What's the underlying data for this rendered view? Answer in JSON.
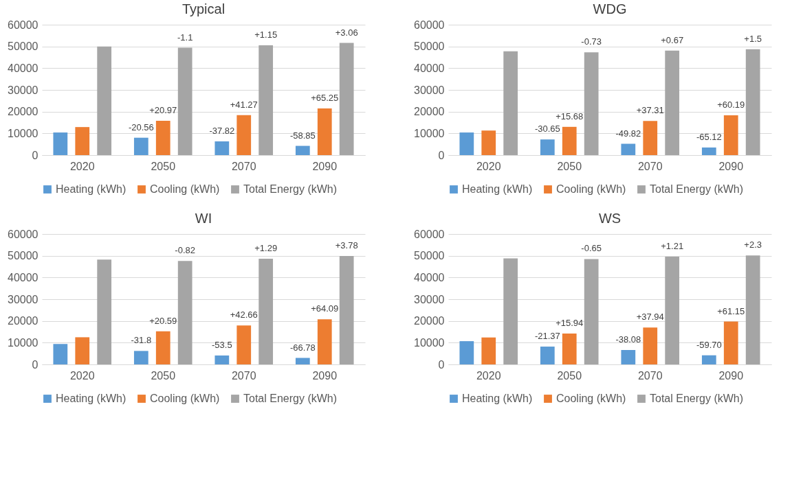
{
  "chart_data": [
    {
      "type": "bar",
      "title": "Typical",
      "categories": [
        "2020",
        "2050",
        "2070",
        "2090"
      ],
      "ylim": [
        0,
        60000
      ],
      "yticks": [
        0,
        10000,
        20000,
        30000,
        40000,
        50000,
        60000
      ],
      "grid": "y",
      "legend": "bottom",
      "series": [
        {
          "name": "Heating (kWh)",
          "color": "#5b9bd5",
          "values": [
            10400,
            8000,
            6300,
            4250
          ]
        },
        {
          "name": "Cooling (kWh)",
          "color": "#ed7d31",
          "values": [
            12900,
            15800,
            18400,
            21500
          ]
        },
        {
          "name": "Total Energy (kWh)",
          "color": "#a5a5a5",
          "values": [
            50000,
            49400,
            50500,
            51600
          ]
        }
      ],
      "annotations": [
        "-20.56",
        "+20.97",
        "-1.1",
        "-37.82",
        "+41.27",
        "+1.15",
        "-58.85",
        "+65.25",
        "+3.06"
      ]
    },
    {
      "type": "bar",
      "title": "WDG",
      "categories": [
        "2020",
        "2050",
        "2070",
        "2090"
      ],
      "ylim": [
        0,
        60000
      ],
      "yticks": [
        0,
        10000,
        20000,
        30000,
        40000,
        50000,
        60000
      ],
      "grid": "y",
      "legend": "bottom",
      "series": [
        {
          "name": "Heating (kWh)",
          "color": "#5b9bd5",
          "values": [
            10400,
            7200,
            5200,
            3500
          ]
        },
        {
          "name": "Cooling (kWh)",
          "color": "#ed7d31",
          "values": [
            11300,
            13000,
            15700,
            18300
          ]
        },
        {
          "name": "Total Energy (kWh)",
          "color": "#a5a5a5",
          "values": [
            47800,
            47300,
            48100,
            48700
          ]
        }
      ],
      "annotations": [
        "-30.65",
        "+15.68",
        "-0.73",
        "-49.82",
        "+37.31",
        "+0.67",
        "-65.12",
        "+60.19",
        "+1.5"
      ]
    },
    {
      "type": "bar",
      "title": "WI",
      "categories": [
        "2020",
        "2050",
        "2070",
        "2090"
      ],
      "ylim": [
        0,
        60000
      ],
      "yticks": [
        0,
        10000,
        20000,
        30000,
        40000,
        50000,
        60000
      ],
      "grid": "y",
      "legend": "bottom",
      "series": [
        {
          "name": "Heating (kWh)",
          "color": "#5b9bd5",
          "values": [
            9400,
            6200,
            4100,
            3000
          ]
        },
        {
          "name": "Cooling (kWh)",
          "color": "#ed7d31",
          "values": [
            12500,
            15200,
            17900,
            20800
          ]
        },
        {
          "name": "Total Energy (kWh)",
          "color": "#a5a5a5",
          "values": [
            48200,
            47600,
            48600,
            49900
          ]
        }
      ],
      "annotations": [
        "-31.8",
        "+20.59",
        "-0.82",
        "-53.5",
        "+42.66",
        "+1.29",
        "-66.78",
        "+64.09",
        "+3.78"
      ]
    },
    {
      "type": "bar",
      "title": "WS",
      "categories": [
        "2020",
        "2050",
        "2070",
        "2090"
      ],
      "ylim": [
        0,
        60000
      ],
      "yticks": [
        0,
        10000,
        20000,
        30000,
        40000,
        50000,
        60000
      ],
      "grid": "y",
      "legend": "bottom",
      "series": [
        {
          "name": "Heating (kWh)",
          "color": "#5b9bd5",
          "values": [
            10700,
            8200,
            6600,
            4200
          ]
        },
        {
          "name": "Cooling (kWh)",
          "color": "#ed7d31",
          "values": [
            12400,
            14200,
            17000,
            19700
          ]
        },
        {
          "name": "Total Energy (kWh)",
          "color": "#a5a5a5",
          "values": [
            48800,
            48500,
            49600,
            50100
          ]
        }
      ],
      "annotations": [
        "-21.37",
        "+15.94",
        "-0.65",
        "-38.08",
        "+37.94",
        "+1.21",
        "-59.70",
        "+61.15",
        "+2.3"
      ]
    }
  ]
}
